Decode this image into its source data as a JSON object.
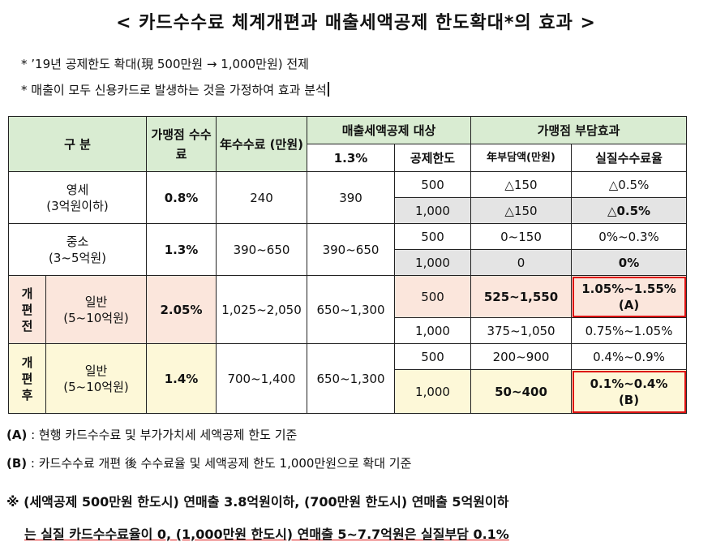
{
  "title": "< 카드수수료 체계개편과 매출세액공제 한도확대*의 효과 >",
  "notes": [
    "* ’19년 공제한도 확대(現 500만원 → 1,000만원) 전제",
    "* 매출이 모두 신용카드로 발생하는 것을 가정하여 효과 분석"
  ],
  "table": {
    "headers": {
      "gubun": "구 분",
      "rate": "가맹점 수수료",
      "annual_fee": "年수수료 (만원)",
      "deduction_target": "매출세액공제 대상",
      "deduction_rate": "1.3%",
      "deduction_limit": "공제한도",
      "burden_effect": "가맹점 부담효과",
      "annual_burden": "年부담액(만원)",
      "real_rate": "실질수수료율"
    },
    "rows": [
      {
        "label_main": "영세",
        "label_sub": "(3억원이하)",
        "rate": "0.8%",
        "fee": "240",
        "deduction": "390",
        "sub": [
          {
            "limit": "500",
            "burden": "△150",
            "real": "△0.5%"
          },
          {
            "limit": "1,000",
            "burden": "△150",
            "real": "△0.5%"
          }
        ]
      },
      {
        "label_main": "중소",
        "label_sub": "(3~5억원)",
        "rate": "1.3%",
        "fee": "390~650",
        "deduction": "390~650",
        "sub": [
          {
            "limit": "500",
            "burden": "0~150",
            "real": "0%~0.3%"
          },
          {
            "limit": "1,000",
            "burden": "0",
            "real": "0%"
          }
        ]
      },
      {
        "group": "개편전",
        "label_main": "일반",
        "label_sub": "(5~10억원)",
        "rate": "2.05%",
        "fee": "1,025~2,050",
        "deduction": "650~1,300",
        "sub": [
          {
            "limit": "500",
            "burden": "525~1,550",
            "real": "1.05%~1.55%",
            "mark": "(A)"
          },
          {
            "limit": "1,000",
            "burden": "375~1,050",
            "real": "0.75%~1.05%"
          }
        ]
      },
      {
        "group": "개편후",
        "label_main": "일반",
        "label_sub": "(5~10억원)",
        "rate": "1.4%",
        "fee": "700~1,400",
        "deduction": "650~1,300",
        "sub": [
          {
            "limit": "500",
            "burden": "200~900",
            "real": "0.4%~0.9%"
          },
          {
            "limit": "1,000",
            "burden": "50~400",
            "real": "0.1%~0.4%",
            "mark": "(B)"
          }
        ]
      }
    ]
  },
  "footnotes": {
    "a_label": "(A)",
    "a_text": " : 현행 카드수수료 및 부가가치세 세액공제 한도 기준",
    "b_label": "(B)",
    "b_text": " : 카드수수료 개편 後 수수료율 및 세액공제 한도 1,000만원으로 확대 기준",
    "remark_line1": "※ (세액공제 500만원 한도시) 연매출 3.8억원이하, (700만원 한도시) 연매출 5억원이하",
    "remark_line2": "는 실질 카드수수료율이 0, (1,000만원 한도시) 연매출 5~7.7억원은 실질부담 0.1%"
  }
}
